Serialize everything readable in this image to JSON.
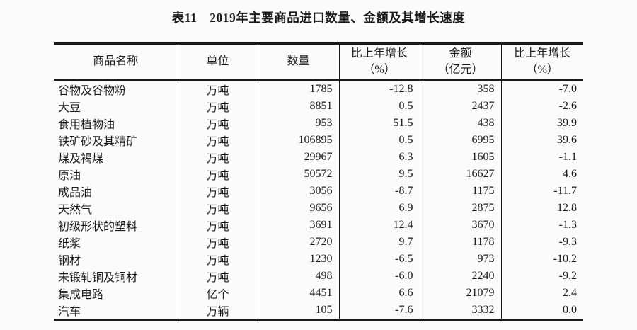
{
  "title": "表11　2019年主要商品进口数量、金额及其增长速度",
  "table": {
    "headers": [
      {
        "lines": [
          "商品名称"
        ]
      },
      {
        "lines": [
          "单位"
        ]
      },
      {
        "lines": [
          "数量"
        ]
      },
      {
        "lines": [
          "比上年增长",
          "（%）"
        ]
      },
      {
        "lines": [
          "金额",
          "（亿元）"
        ]
      },
      {
        "lines": [
          "比上年增长",
          "（%）"
        ]
      }
    ],
    "column_keys": [
      "commodity",
      "unit",
      "quantity",
      "quantity_growth_pct",
      "amount_100m_yuan",
      "amount_growth_pct"
    ],
    "rows": [
      [
        "谷物及谷物粉",
        "万吨",
        "1785",
        "-12.8",
        "358",
        "-7.0"
      ],
      [
        "大豆",
        "万吨",
        "8851",
        "0.5",
        "2437",
        "-2.6"
      ],
      [
        "食用植物油",
        "万吨",
        "953",
        "51.5",
        "438",
        "39.9"
      ],
      [
        "铁矿砂及其精矿",
        "万吨",
        "106895",
        "0.5",
        "6995",
        "39.6"
      ],
      [
        "煤及褐煤",
        "万吨",
        "29967",
        "6.3",
        "1605",
        "-1.1"
      ],
      [
        "原油",
        "万吨",
        "50572",
        "9.5",
        "16627",
        "4.6"
      ],
      [
        "成品油",
        "万吨",
        "3056",
        "-8.7",
        "1175",
        "-11.7"
      ],
      [
        "天然气",
        "万吨",
        "9656",
        "6.9",
        "2875",
        "12.8"
      ],
      [
        "初级形状的塑料",
        "万吨",
        "3691",
        "12.4",
        "3670",
        "-1.3"
      ],
      [
        "纸浆",
        "万吨",
        "2720",
        "9.7",
        "1178",
        "-9.3"
      ],
      [
        "钢材",
        "万吨",
        "1230",
        "-6.5",
        "973",
        "-10.2"
      ],
      [
        "未锻轧铜及铜材",
        "万吨",
        "498",
        "-6.0",
        "2240",
        "-9.2"
      ],
      [
        "集成电路",
        "亿个",
        "4451",
        "6.6",
        "21079",
        "2.4"
      ],
      [
        "汽车",
        "万辆",
        "105",
        "-7.6",
        "3332",
        "0.0"
      ]
    ]
  },
  "colors": {
    "background": "#fbfbfb",
    "border": "#1a1a1a",
    "text": "#1a1a1a"
  }
}
